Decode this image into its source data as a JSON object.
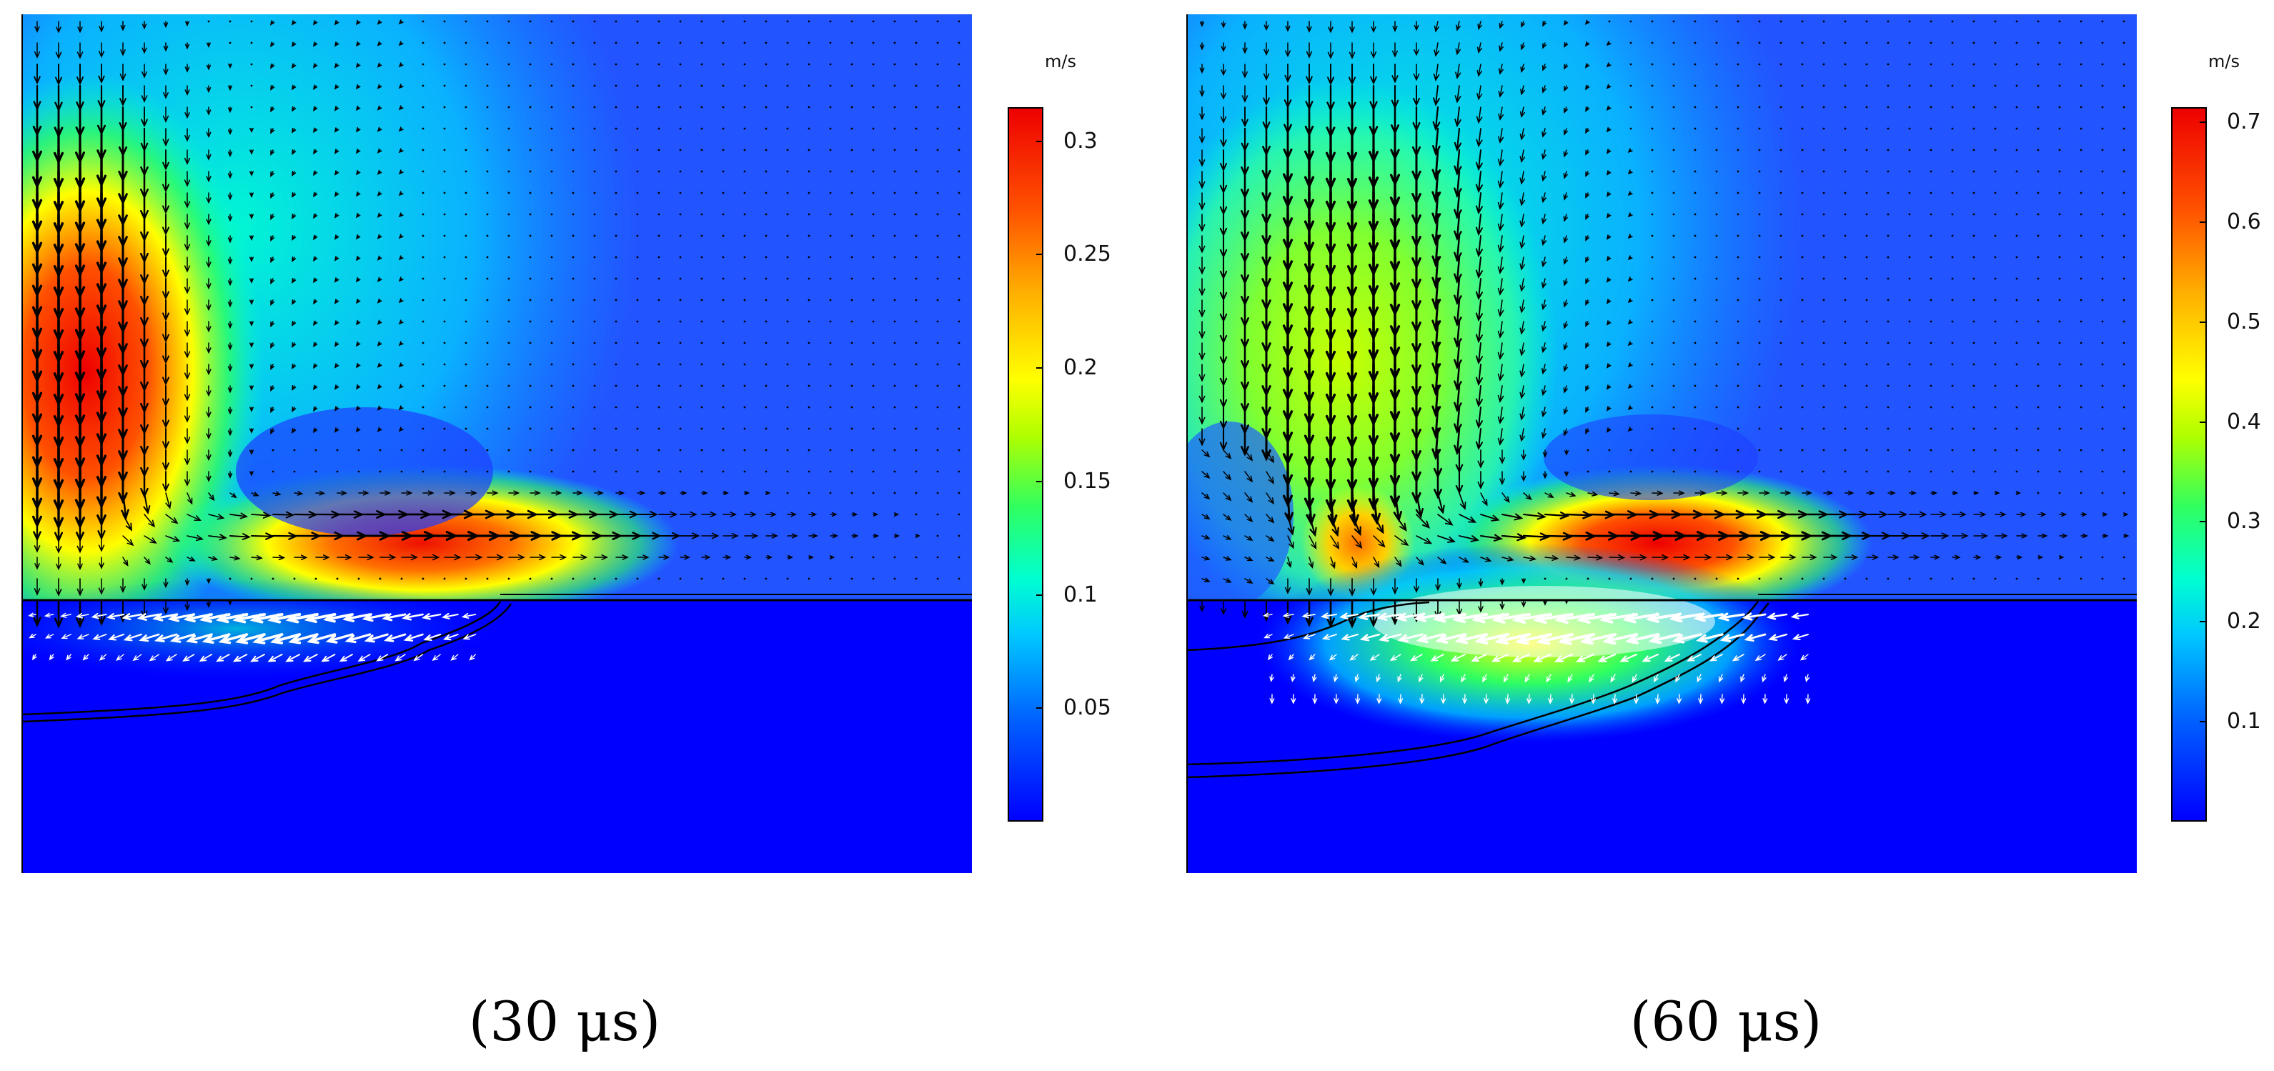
{
  "chart_data": [
    {
      "type": "heatmap",
      "caption": "(30 μs)",
      "colorbar": {
        "unit": "m/s",
        "ticks": [
          "0.3",
          "0.25",
          "0.2",
          "0.15",
          "0.1",
          "0.05"
        ],
        "tick_values": [
          0.3,
          0.25,
          0.2,
          0.15,
          0.1,
          0.05
        ],
        "range": [
          0,
          0.315
        ]
      },
      "colors": [
        "#0000ff",
        "#00c8ff",
        "#30ff60",
        "#ffff00",
        "#ff5000",
        "#ee0000"
      ],
      "overlay": "velocity arrows (black above surface, white in melt pool)"
    },
    {
      "type": "heatmap",
      "caption": "(60 μs)",
      "colorbar": {
        "unit": "m/s",
        "ticks": [
          "0.7",
          "0.6",
          "0.5",
          "0.4",
          "0.3",
          "0.2",
          "0.1"
        ],
        "tick_values": [
          0.7,
          0.6,
          0.5,
          0.4,
          0.3,
          0.2,
          0.1
        ],
        "range": [
          0,
          0.715
        ]
      },
      "colors": [
        "#0000ff",
        "#00c8ff",
        "#30ff60",
        "#ffff00",
        "#ff5000",
        "#ee0000"
      ],
      "overlay": "velocity arrows (black above surface, white in melt pool)"
    }
  ]
}
